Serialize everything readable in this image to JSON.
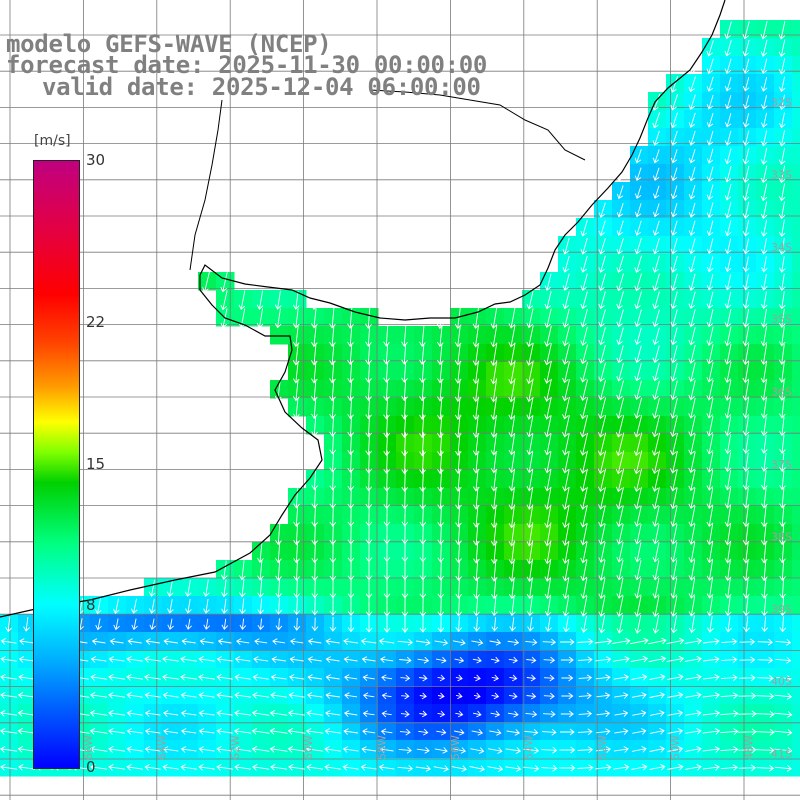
{
  "header": {
    "line1": "modelo GEFS-WAVE (NCEP)",
    "line2": "forecast date: 2025-11-30 00:00:00",
    "line3": "valid date: 2025-12-04 06:00:00"
  },
  "colorbar": {
    "unit": "[m/s]",
    "ticks": [
      {
        "value": 30,
        "label": "30"
      },
      {
        "value": 22,
        "label": "22"
      },
      {
        "value": 15,
        "label": "15"
      },
      {
        "value": 8,
        "label": "8"
      },
      {
        "value": 0,
        "label": "0"
      }
    ],
    "range": [
      0,
      30
    ]
  },
  "map": {
    "variable": "wind speed and direction",
    "colors": {
      "land": "#ffffff",
      "coastline": "#000000",
      "grid": "#7a7a7a",
      "arrows": "#ffffff"
    },
    "lat_labels": [
      "32S",
      "33S",
      "34S",
      "35S",
      "36S",
      "37S",
      "38S",
      "39S",
      "40S",
      "41S"
    ],
    "lon_labels": [
      "66W",
      "64W",
      "62W",
      "60W",
      "58W",
      "56W",
      "54W",
      "52W",
      "50W",
      "48W"
    ]
  }
}
